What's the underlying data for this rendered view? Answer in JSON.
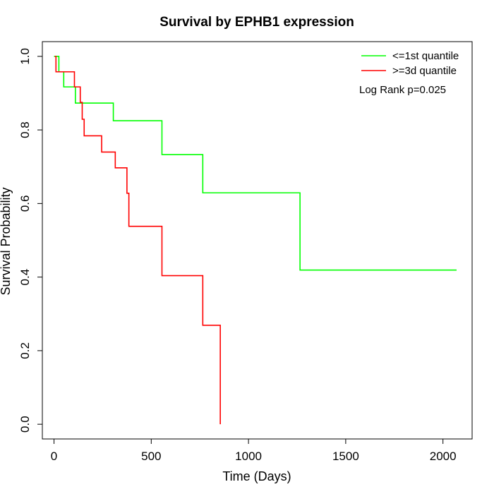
{
  "chart_data": {
    "type": "line",
    "title": "Survival by EPHB1 expression",
    "xlabel": "Time (Days)",
    "ylabel": "Survival Probability",
    "xlim": [
      -60,
      2150
    ],
    "ylim": [
      -0.04,
      1.04
    ],
    "xticks": [
      0,
      500,
      1000,
      1500,
      2000
    ],
    "xtick_labels": [
      "0",
      "500",
      "1000",
      "1500",
      "2000"
    ],
    "yticks": [
      0.0,
      0.2,
      0.4,
      0.6,
      0.8,
      1.0
    ],
    "ytick_labels": [
      "0.0",
      "0.2",
      "0.4",
      "0.6",
      "0.8",
      "1.0"
    ],
    "grid": false,
    "legend_position": "top-right",
    "annotation": "Log Rank p=0.025",
    "series": [
      {
        "name": "<=1st quantile",
        "color": "#00ff00",
        "step": true,
        "x": [
          0,
          25,
          50,
          110,
          305,
          555,
          765,
          1265,
          2070
        ],
        "y": [
          1.0,
          0.958,
          0.917,
          0.873,
          0.825,
          0.733,
          0.629,
          0.419,
          0.419
        ]
      },
      {
        "name": ">=3d quantile",
        "color": "#ff0000",
        "step": true,
        "x": [
          5,
          10,
          105,
          135,
          145,
          155,
          245,
          315,
          375,
          385,
          555,
          765,
          855
        ],
        "y": [
          1.0,
          0.958,
          0.917,
          0.875,
          0.829,
          0.784,
          0.74,
          0.697,
          0.628,
          0.538,
          0.404,
          0.269,
          0.0
        ]
      }
    ]
  }
}
